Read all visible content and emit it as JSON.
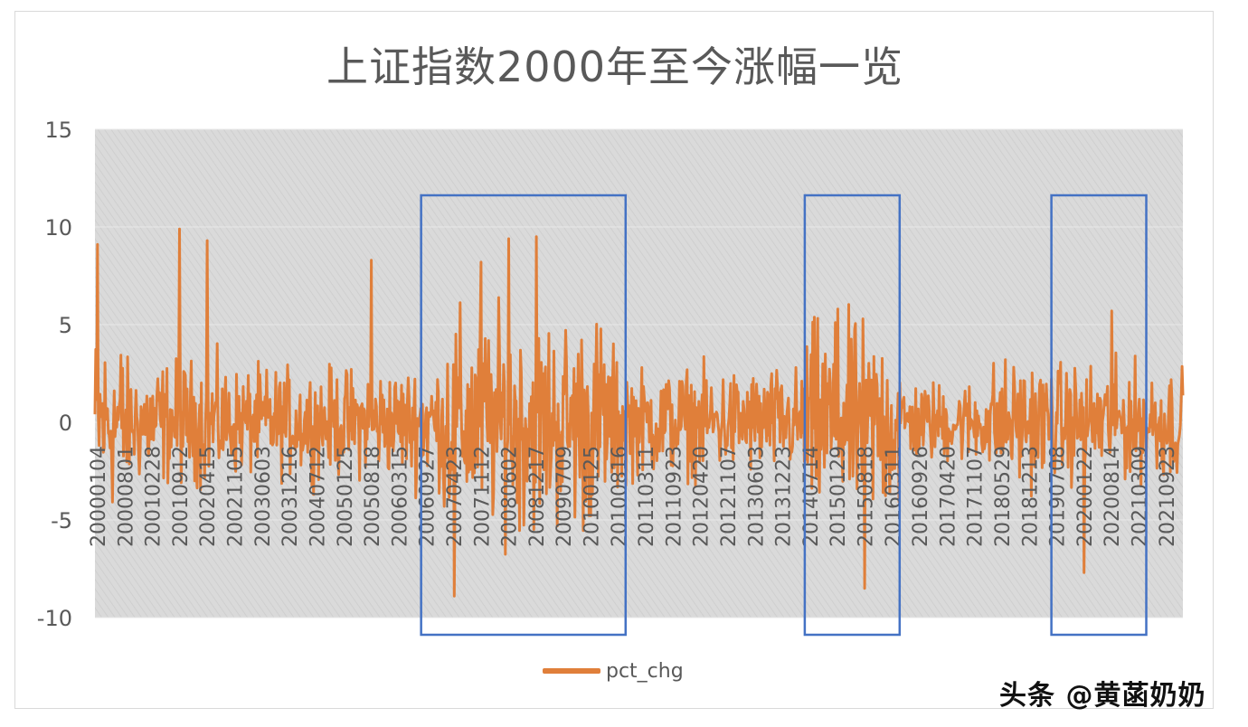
{
  "chart_data": {
    "type": "line",
    "title": "上证指数2000年至今涨幅一览",
    "ylim": [
      -10,
      15
    ],
    "y_ticks": [
      "15",
      "10",
      "5",
      "0",
      "-5",
      "-10"
    ],
    "x_tick_labels": [
      "20000104",
      "20000801",
      "20010228",
      "20010912",
      "20020415",
      "20021105",
      "20030603",
      "20031216",
      "20040712",
      "20050125",
      "20050818",
      "20060315",
      "20060927",
      "20070423",
      "20071112",
      "20080602",
      "20081217",
      "20090709",
      "20100125",
      "20100816",
      "20110311",
      "20110923",
      "20120420",
      "20121107",
      "20130603",
      "20131223",
      "20140714",
      "20150129",
      "20150818",
      "20160311",
      "20160926",
      "20170420",
      "20171107",
      "20180529",
      "20181213",
      "20190708",
      "20200122",
      "20200814",
      "20210309",
      "20210923"
    ],
    "series": [
      {
        "name": "pct_chg",
        "color": "#E07F3A",
        "note_peaks": [
          {
            "x": "20000104",
            "y": 9.1
          },
          {
            "x": "20010912",
            "y": 9.9
          },
          {
            "x": "20020415",
            "y": 9.3
          },
          {
            "x": "20050818",
            "y": 8.3
          },
          {
            "x": "20070423",
            "y": -8.9
          },
          {
            "x": "20071112",
            "y": 8.2
          },
          {
            "x": "20080602",
            "y": 9.4
          },
          {
            "x": "20081217",
            "y": 9.5
          },
          {
            "x": "20150129",
            "y": 5.8
          },
          {
            "x": "20150818",
            "y": -8.5
          },
          {
            "x": "20200122",
            "y": -7.7
          },
          {
            "x": "20200814",
            "y": 5.7
          }
        ]
      }
    ],
    "highlight_boxes": [
      {
        "from": "20060927",
        "to": "20100816"
      },
      {
        "from": "20140714",
        "to": "20160311"
      },
      {
        "from": "20190708",
        "to": "20210309"
      }
    ],
    "legend": "bottom",
    "grid": true
  },
  "watermark": "头条 @黄菡奶奶"
}
